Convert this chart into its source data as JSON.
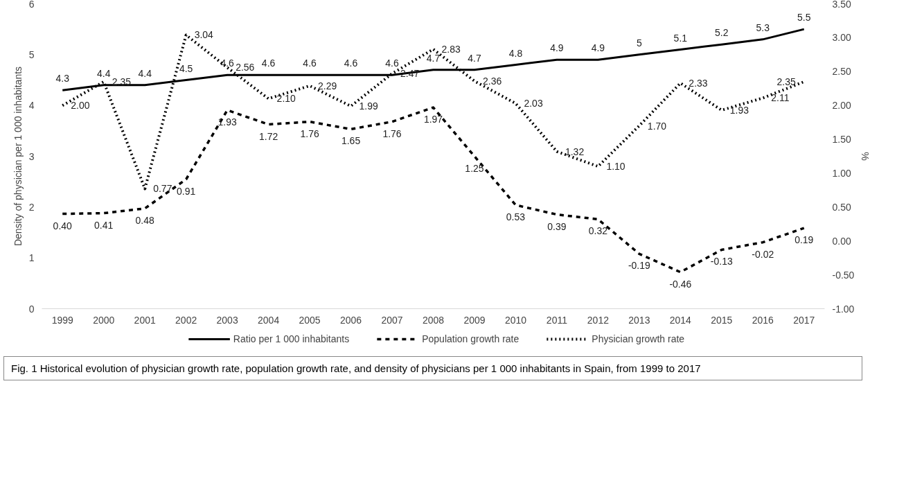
{
  "chart_data": {
    "type": "line",
    "categories": [
      "1999",
      "2000",
      "2001",
      "2002",
      "2003",
      "2004",
      "2005",
      "2006",
      "2007",
      "2008",
      "2009",
      "2010",
      "2011",
      "2012",
      "2013",
      "2014",
      "2015",
      "2016",
      "2017"
    ],
    "series": [
      {
        "name": "Ratio per 1 000 inhabitants",
        "color": "#000000",
        "line_style": "solid",
        "values": [
          4.3,
          4.4,
          4.4,
          4.5,
          4.6,
          4.6,
          4.6,
          4.6,
          4.6,
          4.7,
          4.7,
          4.8,
          4.9,
          4.9,
          5,
          5.1,
          5.2,
          5.3,
          5.5
        ],
        "value_labels": [
          "4.3",
          "4.4",
          "4.4",
          "4.5",
          "4.6",
          "4.6",
          "4.6",
          "4.6",
          "4.6",
          "4.7",
          "4.7",
          "4.8",
          "4.9",
          "4.9",
          "5",
          "5.1",
          "5.2",
          "5.3",
          "5.5"
        ]
      },
      {
        "name": "Population growth rate",
        "color": "#000000",
        "line_style": "dashed",
        "axis": "y2",
        "values": [
          0.4,
          0.41,
          0.48,
          0.91,
          1.93,
          1.72,
          1.76,
          1.65,
          1.76,
          1.97,
          1.25,
          0.53,
          0.39,
          0.32,
          -0.19,
          -0.46,
          -0.13,
          -0.02,
          0.19
        ],
        "value_labels": [
          "0.40",
          "0.41",
          "0.48",
          "0.91",
          "1.93",
          "1.72",
          "1.76",
          "1.65",
          "1.76",
          "1.97",
          "1.25",
          "0.53",
          "0.39",
          "0.32",
          "-0.19",
          "-0.46",
          "-0.13",
          "-0.02",
          "0.19"
        ]
      },
      {
        "name": "Physician growth rate",
        "color": "#000000",
        "line_style": "dotted",
        "axis": "y2",
        "values": [
          2.0,
          2.35,
          0.77,
          3.04,
          2.56,
          2.1,
          2.29,
          1.99,
          2.47,
          2.83,
          2.36,
          2.03,
          1.32,
          1.1,
          1.7,
          2.33,
          1.93,
          2.11,
          2.35
        ],
        "value_labels": [
          "2.00",
          "2.35",
          "0.77",
          "3.04",
          "2.56",
          "2.10",
          "2.29",
          "1.99",
          "2.47",
          "2.83",
          "2.36",
          "2.03",
          "1.32",
          "1.10",
          "1.70",
          "2.33",
          "1.93",
          "2.11",
          "2.35"
        ]
      }
    ],
    "ylabel": "Density of physician per 1 000 inhabitants",
    "y2label": "%",
    "ylim": [
      0,
      6
    ],
    "yticks": [
      0,
      1,
      2,
      3,
      4,
      5,
      6
    ],
    "y2lim": [
      -1,
      3.5
    ],
    "y2ticks": [
      {
        "value": -1,
        "label": "-1.00"
      },
      {
        "value": -0.5,
        "label": "-0.50"
      },
      {
        "value": 0,
        "label": "0.00"
      },
      {
        "value": 0.5,
        "label": "0.50"
      },
      {
        "value": 1,
        "label": "1.00"
      },
      {
        "value": 1.5,
        "label": "1.50"
      },
      {
        "value": 2,
        "label": "2.00"
      },
      {
        "value": 2.5,
        "label": "2.50"
      },
      {
        "value": 3,
        "label": "3.00"
      },
      {
        "value": 3.5,
        "label": "3.50"
      }
    ],
    "legend": "bottom",
    "grid": false,
    "annotations": [
      "Fig. 1 Historical evolution of physician growth rate, population growth rate, and density of physicians per 1 000 inhabitants in Spain, from 1999 to 2017"
    ]
  }
}
